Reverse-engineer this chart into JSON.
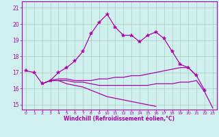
{
  "xlabel": "Windchill (Refroidissement éolien,°C)",
  "background_color": "#cff0ee",
  "grid_color": "#aaccbb",
  "line_color": "#aa00aa",
  "xlim": [
    -0.5,
    23.5
  ],
  "ylim": [
    14.7,
    21.4
  ],
  "xticks": [
    0,
    1,
    2,
    3,
    4,
    5,
    6,
    7,
    8,
    9,
    10,
    11,
    12,
    13,
    14,
    15,
    16,
    17,
    18,
    19,
    20,
    21,
    22,
    23
  ],
  "yticks": [
    15,
    16,
    17,
    18,
    19,
    20,
    21
  ],
  "x": [
    0,
    1,
    2,
    3,
    4,
    5,
    6,
    7,
    8,
    9,
    10,
    11,
    12,
    13,
    14,
    15,
    16,
    17,
    18,
    19,
    20,
    21,
    22,
    23
  ],
  "curve1": [
    17.1,
    17.0,
    16.3,
    16.5,
    17.0,
    17.3,
    17.7,
    18.3,
    19.4,
    20.1,
    20.6,
    19.8,
    19.3,
    19.3,
    18.9,
    19.3,
    19.5,
    19.1,
    18.3,
    17.5,
    17.3,
    16.8,
    15.9,
    null
  ],
  "curve2": [
    17.1,
    null,
    16.3,
    16.5,
    16.6,
    16.6,
    16.5,
    16.5,
    16.5,
    16.6,
    16.6,
    16.7,
    16.7,
    16.8,
    16.8,
    16.9,
    17.0,
    17.1,
    17.2,
    17.3,
    17.3,
    16.8,
    null,
    null
  ],
  "curve3": [
    17.1,
    null,
    16.3,
    16.5,
    16.5,
    16.5,
    16.4,
    16.4,
    16.3,
    16.2,
    16.2,
    16.2,
    16.2,
    16.2,
    16.2,
    16.2,
    16.3,
    16.3,
    16.3,
    16.4,
    16.4,
    16.5,
    15.8,
    14.8
  ],
  "curve4": [
    17.1,
    null,
    16.3,
    16.5,
    16.5,
    16.3,
    16.2,
    16.1,
    15.9,
    15.7,
    15.5,
    15.4,
    15.3,
    15.2,
    15.1,
    15.0,
    14.9,
    null,
    null,
    null,
    null,
    null,
    null,
    null
  ]
}
